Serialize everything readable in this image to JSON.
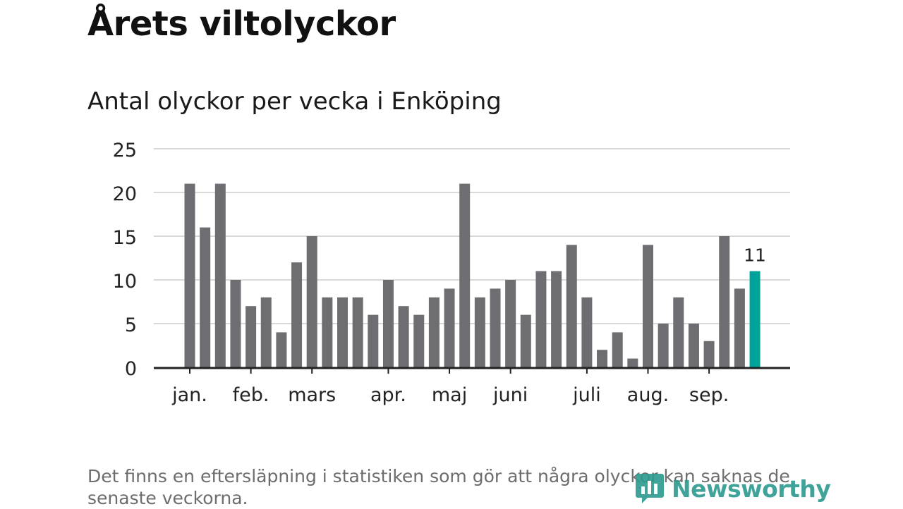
{
  "header": {
    "title": "Årets viltolyckor",
    "subtitle": "Antal olyckor per vecka i Enköping"
  },
  "footnote": "Det finns en eftersläpning i statistiken som gör att några olyckor kan saknas de senaste veckorna.",
  "logo": {
    "text": "Newsworthy"
  },
  "colors": {
    "bar": "#6e6d72",
    "highlight": "#00a399",
    "grid": "#d9d9d9",
    "axis": "#222222",
    "logo": "#2c9a8f"
  },
  "chart_data": {
    "type": "bar",
    "title": "Antal olyckor per vecka i Enköping",
    "xlabel": "",
    "ylabel": "",
    "ylim": [
      0,
      25
    ],
    "y_ticks": [
      0,
      5,
      10,
      15,
      20,
      25
    ],
    "grid": true,
    "values": [
      21,
      16,
      21,
      10,
      7,
      8,
      4,
      12,
      15,
      8,
      8,
      8,
      6,
      10,
      7,
      6,
      8,
      9,
      21,
      8,
      9,
      10,
      6,
      11,
      11,
      14,
      8,
      2,
      4,
      1,
      14,
      5,
      8,
      5,
      3,
      15,
      9,
      11
    ],
    "highlight_index": 37,
    "highlight_label": "11",
    "month_labels": [
      {
        "label": "jan.",
        "bar_index": 0
      },
      {
        "label": "feb.",
        "bar_index": 4
      },
      {
        "label": "mars",
        "bar_index": 8
      },
      {
        "label": "apr.",
        "bar_index": 13
      },
      {
        "label": "maj",
        "bar_index": 17
      },
      {
        "label": "juni",
        "bar_index": 21
      },
      {
        "label": "juli",
        "bar_index": 26
      },
      {
        "label": "aug.",
        "bar_index": 30
      },
      {
        "label": "sep.",
        "bar_index": 34
      }
    ]
  }
}
